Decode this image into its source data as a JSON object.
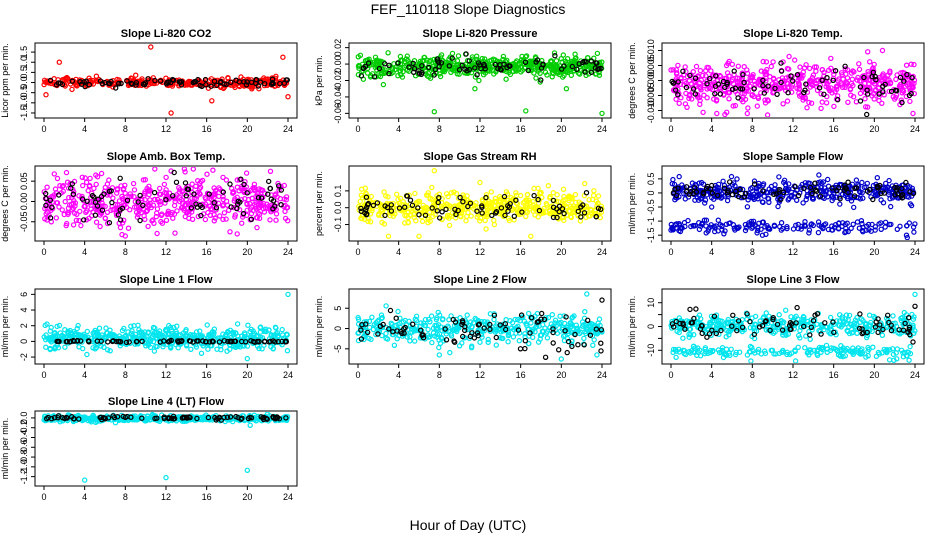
{
  "figure": {
    "title": "FEF_110118  Slope Diagnostics",
    "xlabel": "Hour of Day (UTC)"
  },
  "chart_data": [
    {
      "type": "scatter",
      "title": "Slope Li-820 CO2",
      "ylabel": "Licor ppm per min.",
      "xlim": [
        0,
        24
      ],
      "ylim": [
        -1.6,
        1.8
      ],
      "xticks": [
        0,
        4,
        8,
        12,
        16,
        20,
        24
      ],
      "xtick_labels": [
        "0",
        "4",
        "8",
        "12",
        "16",
        "20",
        "24"
      ],
      "yticks": [
        -1.5,
        -1.0,
        -0.5,
        0.0,
        0.5,
        1.0,
        1.5
      ],
      "ytick_labels": [
        "-1.5",
        "-1.0",
        "-0.5",
        "0.0",
        "0.5",
        "1.0",
        "1.5"
      ],
      "series": [
        {
          "color": "#ff0000",
          "center": 0.0,
          "spread": 0.12,
          "count": 330,
          "outliers": [
            [
              10.5,
              1.75
            ],
            [
              23.5,
              1.25
            ],
            [
              1.5,
              1.0
            ],
            [
              12.5,
              -1.5
            ],
            [
              0.2,
              -0.6
            ],
            [
              24,
              -0.7
            ],
            [
              16.5,
              -0.9
            ]
          ]
        },
        {
          "color": "#000000",
          "center": 0.0,
          "spread": 0.1,
          "count": 80,
          "outliers": []
        }
      ]
    },
    {
      "type": "scatter",
      "title": "Slope Li-820 Pressure",
      "ylabel": "kPa per min.",
      "xlim": [
        0,
        24
      ],
      "ylim": [
        -0.062,
        0.022
      ],
      "xticks": [
        0,
        4,
        8,
        12,
        16,
        20,
        24
      ],
      "xtick_labels": [
        "0",
        "4",
        "8",
        "12",
        "16",
        "20",
        "24"
      ],
      "yticks": [
        -0.06,
        -0.04,
        -0.02,
        0.0,
        0.02
      ],
      "ytick_labels": [
        "-0.06",
        "-0.04",
        "-0.02",
        "0.00",
        "0.02"
      ],
      "series": [
        {
          "color": "#00cc00",
          "center": -0.003,
          "spread": 0.006,
          "count": 520,
          "outliers": [
            [
              7.5,
              -0.058
            ],
            [
              16.5,
              -0.057
            ],
            [
              24,
              -0.06
            ],
            [
              2.5,
              -0.025
            ],
            [
              11.5,
              -0.03
            ],
            [
              20.5,
              -0.03
            ]
          ]
        },
        {
          "color": "#000000",
          "center": -0.003,
          "spread": 0.005,
          "count": 80,
          "outliers": []
        }
      ]
    },
    {
      "type": "scatter",
      "title": "Slope Li-820 Temp.",
      "ylabel": "degrees C per min.",
      "xlim": [
        0,
        24
      ],
      "ylim": [
        -0.0115,
        0.0115
      ],
      "xticks": [
        0,
        4,
        8,
        12,
        16,
        20,
        24
      ],
      "xtick_labels": [
        "0",
        "4",
        "8",
        "12",
        "16",
        "20",
        "24"
      ],
      "yticks": [
        -0.01,
        -0.005,
        0.0,
        0.005,
        0.01
      ],
      "ytick_labels": [
        "-0.010",
        "-0.005",
        "0.000",
        "0.005",
        "0.010"
      ],
      "series": [
        {
          "color": "#ff00ff",
          "center": -0.001,
          "spread": 0.0035,
          "count": 520,
          "outliers": [
            [
              20.8,
              0.01
            ],
            [
              4.5,
              -0.011
            ],
            [
              7.5,
              -0.011
            ],
            [
              23.8,
              -0.011
            ]
          ]
        },
        {
          "color": "#000000",
          "center": -0.001,
          "spread": 0.003,
          "count": 80,
          "outliers": []
        }
      ]
    },
    {
      "type": "scatter",
      "title": "Slope Amb. Box Temp.",
      "ylabel": "degrees C per min.",
      "xlim": [
        0,
        24
      ],
      "ylim": [
        -0.09,
        0.08
      ],
      "xticks": [
        0,
        4,
        8,
        12,
        16,
        20,
        24
      ],
      "xtick_labels": [
        "0",
        "4",
        "8",
        "12",
        "16",
        "20",
        "24"
      ],
      "yticks": [
        -0.05,
        0.0,
        0.05
      ],
      "ytick_labels": [
        "-0.05",
        "0.00",
        "0.05"
      ],
      "series": [
        {
          "color": "#ff00ff",
          "center": 0.0,
          "spread": 0.03,
          "count": 520,
          "outliers": [
            [
              8.0,
              -0.085
            ],
            [
              19.0,
              -0.08
            ],
            [
              12.5,
              0.075
            ]
          ]
        },
        {
          "color": "#000000",
          "center": 0.0,
          "spread": 0.025,
          "count": 80,
          "outliers": []
        }
      ]
    },
    {
      "type": "scatter",
      "title": "Slope Gas Stream RH",
      "ylabel": "percent per min.",
      "xlim": [
        0,
        24
      ],
      "ylim": [
        -0.18,
        0.23
      ],
      "xticks": [
        0,
        4,
        8,
        12,
        16,
        20,
        24
      ],
      "xtick_labels": [
        "0",
        "4",
        "8",
        "12",
        "16",
        "20",
        "24"
      ],
      "yticks": [
        -0.1,
        0.0,
        0.1
      ],
      "ytick_labels": [
        "-0.1",
        "0.0",
        "0.1"
      ],
      "series": [
        {
          "color": "#ffff00",
          "center": 0.0,
          "spread": 0.045,
          "count": 520,
          "outliers": [
            [
              7.5,
              0.22
            ],
            [
              12.0,
              0.15
            ],
            [
              3.0,
              -0.17
            ],
            [
              6.0,
              -0.17
            ],
            [
              17.0,
              -0.17
            ]
          ]
        },
        {
          "color": "#000000",
          "center": 0.0,
          "spread": 0.04,
          "count": 80,
          "outliers": []
        }
      ]
    },
    {
      "type": "scatter",
      "title": "Slope Sample Flow",
      "ylabel": "ml/min per min.",
      "xlim": [
        0,
        24
      ],
      "ylim": [
        -1.6,
        0.85
      ],
      "xticks": [
        0,
        4,
        8,
        12,
        16,
        20,
        24
      ],
      "xtick_labels": [
        "0",
        "4",
        "8",
        "12",
        "16",
        "20",
        "24"
      ],
      "yticks": [
        -1.5,
        -1.0,
        -0.5,
        0.0,
        0.5
      ],
      "ytick_labels": [
        "-1.5",
        "-1",
        "-0.5",
        "0",
        "0.5"
      ],
      "series": [
        {
          "color": "#0000cc",
          "center": 0.05,
          "spread": 0.2,
          "count": 380,
          "lower": {
            "center": -1.2,
            "spread": 0.12,
            "count": 170
          },
          "outliers": [
            [
              4.0,
              -0.5
            ],
            [
              9.0,
              -1.5
            ]
          ]
        },
        {
          "color": "#000000",
          "center": 0.1,
          "spread": 0.15,
          "count": 80,
          "outliers": []
        }
      ]
    },
    {
      "type": "scatter",
      "title": "Slope Line 1 Flow",
      "ylabel": "ml/min per min.",
      "xlim": [
        0,
        24
      ],
      "ylim": [
        -2.5,
        6.3
      ],
      "xticks": [
        0,
        4,
        8,
        12,
        16,
        20,
        24
      ],
      "xtick_labels": [
        "0",
        "4",
        "8",
        "12",
        "16",
        "20",
        "24"
      ],
      "yticks": [
        -2,
        0,
        2,
        4,
        6
      ],
      "ytick_labels": [
        "-2",
        "0",
        "2",
        "4",
        "6"
      ],
      "series": [
        {
          "color": "#00e5ee",
          "center": 0.4,
          "spread": 0.7,
          "count": 520,
          "outliers": [
            [
              24.0,
              6.0
            ],
            [
              20.0,
              -2.2
            ],
            [
              0.3,
              2.2
            ]
          ]
        },
        {
          "color": "#000000",
          "center": 0.0,
          "spread": 0.05,
          "count": 80,
          "outliers": []
        }
      ]
    },
    {
      "type": "scatter",
      "title": "Slope Line 2 Flow",
      "ylabel": "ml/min per min.",
      "xlim": [
        0,
        24
      ],
      "ylim": [
        -8,
        9
      ],
      "xticks": [
        0,
        4,
        8,
        12,
        16,
        20,
        24
      ],
      "xtick_labels": [
        "0",
        "4",
        "8",
        "12",
        "16",
        "20",
        "24"
      ],
      "yticks": [
        -5,
        0,
        5
      ],
      "ytick_labels": [
        "-5",
        "0",
        "5"
      ],
      "series": [
        {
          "color": "#00e5ee",
          "center": 0.0,
          "spread": 1.8,
          "count": 420,
          "outliers": [
            [
              22.5,
              8.5
            ],
            [
              20.0,
              -7.5
            ],
            [
              23.5,
              -6.5
            ],
            [
              8.0,
              -6.5
            ]
          ]
        },
        {
          "color": "#000000",
          "center": 0.0,
          "spread": 2.5,
          "count": 80,
          "outliers": [
            [
              24.0,
              7.0
            ],
            [
              23.9,
              -5.5
            ]
          ]
        }
      ]
    },
    {
      "type": "scatter",
      "title": "Slope Line 3 Flow",
      "ylabel": "ml/min per min.",
      "xlim": [
        0,
        24
      ],
      "ylim": [
        -14.5,
        14.5
      ],
      "xticks": [
        0,
        4,
        8,
        12,
        16,
        20,
        24
      ],
      "xtick_labels": [
        "0",
        "4",
        "8",
        "12",
        "16",
        "20",
        "24"
      ],
      "yticks": [
        -10,
        -5,
        0,
        5,
        10
      ],
      "ytick_labels": [
        "-10",
        "",
        "0",
        "",
        "10"
      ],
      "series": [
        {
          "color": "#00e5ee",
          "center": 0.5,
          "spread": 2.2,
          "count": 380,
          "lower": {
            "center": -10.5,
            "spread": 1.3,
            "count": 170
          },
          "outliers": [
            [
              24.0,
              13.5
            ],
            [
              0.5,
              -13.0
            ]
          ]
        },
        {
          "color": "#000000",
          "center": 0.5,
          "spread": 3.0,
          "count": 80,
          "outliers": [
            [
              24.0,
              8.5
            ],
            [
              23.8,
              -6.5
            ]
          ]
        }
      ]
    },
    {
      "type": "scatter",
      "title": "Slope Line 4 (LT) Flow",
      "ylabel": "ml/min per min.",
      "xlim": [
        0,
        24
      ],
      "ylim": [
        -1.33,
        0.08
      ],
      "xticks": [
        0,
        4,
        8,
        12,
        16,
        20,
        24
      ],
      "xtick_labels": [
        "0",
        "4",
        "8",
        "12",
        "16",
        "20",
        "24"
      ],
      "yticks": [
        -1.2,
        -1.0,
        -0.8,
        -0.6,
        -0.4,
        -0.2,
        0.0
      ],
      "ytick_labels": [
        "-1.2",
        "-1.0",
        "-0.8",
        "-0.6",
        "-0.4",
        "-0.2",
        "0.0"
      ],
      "series": [
        {
          "color": "#00e5ee",
          "center": -0.01,
          "spread": 0.03,
          "count": 420,
          "outliers": [
            [
              4.0,
              -1.27
            ],
            [
              12.0,
              -1.22
            ],
            [
              20.0,
              -1.07
            ]
          ]
        },
        {
          "color": "#000000",
          "center": 0.0,
          "spread": 0.015,
          "count": 80,
          "outliers": []
        }
      ]
    }
  ]
}
